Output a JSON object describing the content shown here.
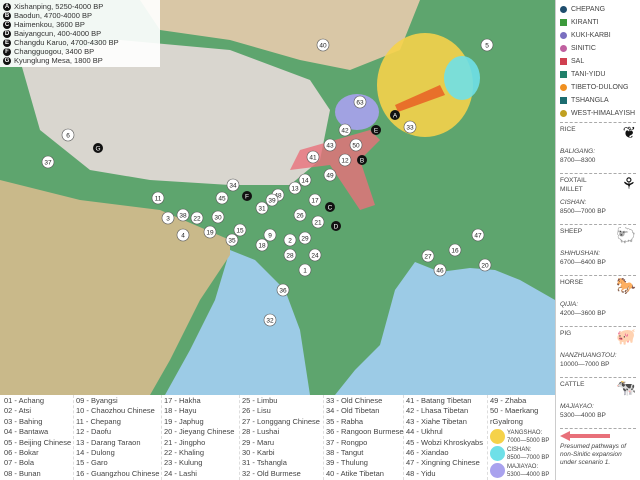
{
  "sites": [
    {
      "letter": "A",
      "text": "Xishanping, 5250-4000 BP"
    },
    {
      "letter": "B",
      "text": "Baodun, 4700-4000 BP"
    },
    {
      "letter": "C",
      "text": "Haimenkou, 3600 BP"
    },
    {
      "letter": "D",
      "text": "Baiyangcun, 400-4000 BP"
    },
    {
      "letter": "E",
      "text": "Changdu Karuo, 4700-4300 BP"
    },
    {
      "letter": "F",
      "text": "Changguogou, 3400 BP"
    },
    {
      "letter": "G",
      "text": "Kyunglung Mesa, 1800 BP"
    }
  ],
  "groups": [
    {
      "label": "CHEPANG",
      "color": "#1f4e6e",
      "shape": "circle"
    },
    {
      "label": "KIRANTI",
      "color": "#3c9a3c",
      "shape": "square"
    },
    {
      "label": "KUKI-KARBI",
      "color": "#7a6fc0",
      "shape": "circle"
    },
    {
      "label": "SINITIC",
      "color": "#c060a0",
      "shape": "circle"
    },
    {
      "label": "SAL",
      "color": "#d04050",
      "shape": "square"
    },
    {
      "label": "TANI-YIDU",
      "color": "#20806a",
      "shape": "square"
    },
    {
      "label": "TIBETO-DULONG",
      "color": "#f09020",
      "shape": "circle"
    },
    {
      "label": "TSHANGLA",
      "color": "#1c6c70",
      "shape": "square"
    },
    {
      "label": "WEST-HIMALAYISH",
      "color": "#c0a020",
      "shape": "circle"
    }
  ],
  "crops": [
    {
      "name": "RICE",
      "site": "BALIGANG:",
      "date": "8700—8300",
      "icon": "rice-icon",
      "glyph": "❦"
    },
    {
      "name": "FOXTAIL MILLET",
      "site": "CISHAN:",
      "date": "8500—7000 BP",
      "icon": "millet-icon",
      "glyph": "⚘"
    },
    {
      "name": "SHEEP",
      "site": "SHIHUSHAN:",
      "date": "6700—6400 BP",
      "icon": "sheep-icon",
      "glyph": "🐑"
    },
    {
      "name": "HORSE",
      "site": "QIJIA:",
      "date": "4200—3600 BP",
      "icon": "horse-icon",
      "glyph": "🐎"
    },
    {
      "name": "PIG",
      "site": "NANZHUANGTOU:",
      "date": "10000—7000 BP",
      "icon": "pig-icon",
      "glyph": "🐖"
    },
    {
      "name": "CATTLE",
      "site": "MAJIAYAO:",
      "date": "5300—4000 BP",
      "icon": "cattle-icon",
      "glyph": "🐄"
    }
  ],
  "arrow_caption": "Presumed pathways of non-Sinitic expansion under scenario 1.",
  "languages": [
    "01 - Achang",
    "02 - Atsi",
    "03 - Bahing",
    "04 - Bantawa",
    "05 - Beijing Chinese",
    "06 - Bokar",
    "07 - Bola",
    "08 - Bunan",
    "09 - Byangsi",
    "10 - Chaozhou Chinese",
    "11 - Chepang",
    "12 - Daofu",
    "13 - Darang Taraon",
    "14 - Dulong",
    "15 - Garo",
    "16 - Guangzhou Chinese",
    "17 - Hakha",
    "18 - Hayu",
    "19 - Japhug",
    "20 - Jieyang Chinese",
    "21 - Jingpho",
    "22 - Khaling",
    "23 - Kulung",
    "24 - Lashi",
    "25 - Limbu",
    "26 - Lisu",
    "27 - Longgang Chinese",
    "28 - Lushai",
    "29 - Maru",
    "30 - Karbi",
    "31 - Tshangla",
    "32 - Old Burmese",
    "33 - Old Chinese",
    "34 - Old Tibetan",
    "35 - Rabha",
    "36 - Rangoon Burmese",
    "37 - Rongpo",
    "38 - Tangut",
    "39 - Thulung",
    "40 - Atike Tibetan",
    "41 - Batang Tibetan",
    "42 - Lhasa Tibetan",
    "43 - Xiahe Tibetan",
    "44 - Ukhrul",
    "45 - Wobzi Khroskyabs",
    "46 - Xiandao",
    "47 - Xingning Chinese",
    "48 - Yidu",
    "49 - Zhaba",
    "50 - Maerkang rGyalrong"
  ],
  "periods": [
    {
      "name": "YANGSHAO:",
      "date": "7000—5000 BP",
      "color": "#f5d24a"
    },
    {
      "name": "CISHAN:",
      "date": "8500—7000 BP",
      "color": "#6fe0e8"
    },
    {
      "name": "MAJIAYAO:",
      "date": "5300—4000 BP",
      "color": "#a9a2ee"
    }
  ],
  "markers": [
    "40",
    "5",
    "63",
    "33",
    "6",
    "37",
    "34",
    "45",
    "48",
    "13",
    "31",
    "43",
    "41",
    "50",
    "49",
    "17",
    "14",
    "39",
    "11",
    "38",
    "22",
    "30",
    "3",
    "4",
    "19",
    "15",
    "18",
    "2",
    "24",
    "28",
    "47",
    "20",
    "16",
    "46",
    "27",
    "32",
    "36",
    "26",
    "21",
    "1",
    "29",
    "12",
    "35",
    "9",
    "42"
  ],
  "colors": {
    "sea": "#9ccbe6",
    "lowland": "#4f9e6a",
    "plateau": "#d8cdb8",
    "arrow": "#e8707a"
  }
}
